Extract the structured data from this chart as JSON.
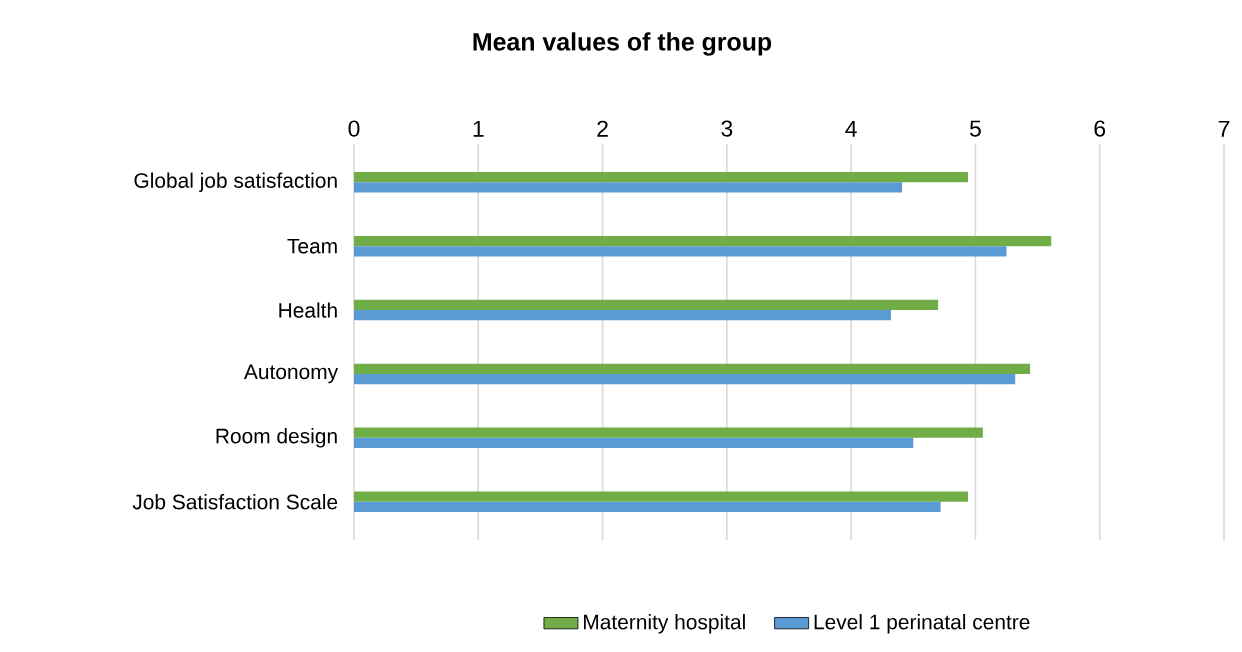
{
  "chart_data": {
    "type": "bar",
    "orientation": "horizontal",
    "title": "Mean values of the group",
    "categories": [
      "Global job satisfaction",
      "Team",
      "Health",
      "Autonomy",
      "Room design",
      "Job Satisfaction Scale"
    ],
    "series": [
      {
        "name": "Maternity hospital",
        "color": "#70ad47",
        "values": [
          4.94,
          5.61,
          4.7,
          5.44,
          5.06,
          4.94
        ]
      },
      {
        "name": "Level 1 perinatal centre",
        "color": "#5b9bd5",
        "values": [
          4.41,
          5.25,
          4.32,
          5.32,
          4.5,
          4.72
        ]
      }
    ],
    "xlim": [
      0,
      7
    ],
    "xticks": [
      0,
      1,
      2,
      3,
      4,
      5,
      6,
      7
    ],
    "grid": "x",
    "legend": "bottom"
  }
}
